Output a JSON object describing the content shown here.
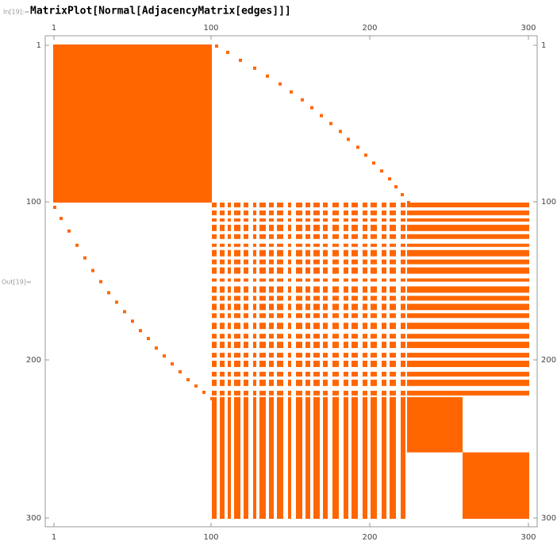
{
  "input_label": "In[19]:=",
  "input_code": "MatrixPlot[Normal[AdjacencyMatrix[edges]]]",
  "output_label": "Out[19]=",
  "chart_data": {
    "type": "matrix",
    "color": "#ff6600",
    "xlim": [
      0.5,
      300.5
    ],
    "ylim": [
      0.5,
      300.5
    ],
    "xticks": [
      1,
      100,
      200,
      300
    ],
    "yticks": [
      1,
      100,
      200,
      300
    ],
    "blocks": [
      [
        1,
        100,
        1,
        100
      ],
      [
        224,
        258,
        224,
        258
      ],
      [
        259,
        300,
        259,
        300
      ]
    ],
    "bands": [
      [
        101,
        103
      ],
      [
        106,
        108
      ],
      [
        111,
        112
      ],
      [
        115,
        118
      ],
      [
        121,
        123
      ],
      [
        127,
        128
      ],
      [
        131,
        134
      ],
      [
        137,
        139
      ],
      [
        142,
        145
      ],
      [
        149,
        150
      ],
      [
        154,
        157
      ],
      [
        160,
        162
      ],
      [
        165,
        168
      ],
      [
        171,
        173
      ],
      [
        177,
        180
      ],
      [
        184,
        186
      ],
      [
        189,
        192
      ],
      [
        196,
        198
      ],
      [
        201,
        204
      ],
      [
        208,
        210
      ],
      [
        213,
        216
      ],
      [
        220,
        222
      ]
    ],
    "band_span": [
      224,
      300
    ],
    "arc": [
      [
        1,
        103
      ],
      [
        5,
        110
      ],
      [
        10,
        118
      ],
      [
        15,
        127
      ],
      [
        20,
        135
      ],
      [
        25,
        143
      ],
      [
        30,
        150
      ],
      [
        35,
        157
      ],
      [
        40,
        163
      ],
      [
        45,
        169
      ],
      [
        50,
        175
      ],
      [
        55,
        181
      ],
      [
        60,
        186
      ],
      [
        65,
        192
      ],
      [
        70,
        197
      ],
      [
        75,
        202
      ],
      [
        80,
        207
      ],
      [
        85,
        212
      ],
      [
        90,
        216
      ],
      [
        95,
        220
      ],
      [
        100,
        224
      ]
    ]
  }
}
